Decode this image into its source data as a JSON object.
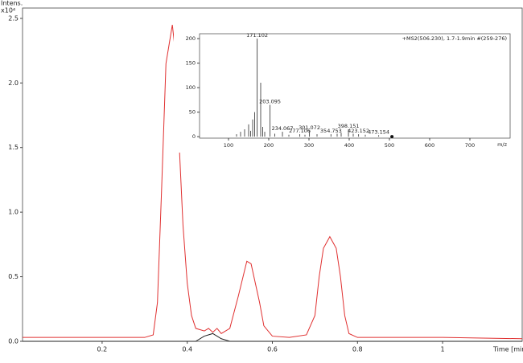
{
  "chart_data": [
    {
      "type": "line",
      "y_axis_label": "Intens.",
      "y_scale_label": "x10⁴",
      "x_axis_label": "Time [min]",
      "xlim": [
        0.013,
        1.187
      ],
      "ylim": [
        0,
        2.58
      ],
      "xticks": [
        0.2,
        0.4,
        0.6,
        0.8,
        1.0
      ],
      "yticks": [
        {
          "value": 0,
          "label": "0.0"
        },
        {
          "value": 0.5,
          "label": "0.5"
        },
        {
          "value": 1,
          "label": "1.0"
        },
        {
          "value": 1.5,
          "label": "1.5"
        },
        {
          "value": 2,
          "label": "2.0"
        },
        {
          "value": 2.5,
          "label": "2.5"
        }
      ],
      "series": [
        {
          "color": "#e03030",
          "x": [
            0.013,
            0.1,
            0.2,
            0.3,
            0.32,
            0.33,
            0.34,
            0.35,
            0.36,
            0.365,
            0.37,
            0.38,
            0.39,
            0.4,
            0.41,
            0.42,
            0.44,
            0.45,
            0.46,
            0.47,
            0.48,
            0.5,
            0.52,
            0.54,
            0.55,
            0.56,
            0.57,
            0.58,
            0.6,
            0.64,
            0.68,
            0.7,
            0.71,
            0.72,
            0.735,
            0.75,
            0.76,
            0.77,
            0.78,
            0.8,
            1.0,
            1.187
          ],
          "values": [
            0.03,
            0.03,
            0.03,
            0.03,
            0.05,
            0.3,
            1.2,
            2.15,
            2.35,
            2.45,
            2.3,
            1.6,
            0.9,
            0.45,
            0.2,
            0.1,
            0.08,
            0.1,
            0.07,
            0.1,
            0.06,
            0.1,
            0.35,
            0.62,
            0.6,
            0.45,
            0.3,
            0.12,
            0.04,
            0.03,
            0.05,
            0.2,
            0.5,
            0.72,
            0.81,
            0.72,
            0.5,
            0.2,
            0.06,
            0.03,
            0.03,
            0.02
          ]
        },
        {
          "color": "#222222",
          "x": [
            0.013,
            0.42,
            0.44,
            0.46,
            0.48,
            0.5,
            1.187
          ],
          "values": [
            0,
            0,
            0.04,
            0.06,
            0.02,
            0,
            0
          ]
        }
      ]
    },
    {
      "type": "bar",
      "annotation": "+MS2(506.230), 1.7-1.9min #(259-276)",
      "x_axis_label": "m/z",
      "xlim": [
        28,
        800
      ],
      "ylim": [
        -3,
        210
      ],
      "xticks": [
        100,
        200,
        300,
        400,
        500,
        600,
        700
      ],
      "yticks": [
        0,
        50,
        100,
        150,
        200
      ],
      "color": "#555555",
      "precursor_mz": 506.23,
      "x": [
        120,
        130,
        140,
        150,
        155,
        160,
        165,
        171.102,
        180,
        185,
        190,
        203.095,
        215,
        234.067,
        250,
        277.106,
        290,
        301.072,
        320,
        354.753,
        370,
        380,
        398.151,
        410,
        423.152,
        440,
        473.154
      ],
      "values": [
        5,
        10,
        15,
        25,
        12,
        35,
        50,
        200,
        110,
        20,
        10,
        65,
        6,
        10,
        4,
        5,
        4,
        12,
        5,
        5,
        6,
        8,
        15,
        6,
        5,
        4,
        3
      ],
      "x_labels": [
        null,
        null,
        null,
        null,
        null,
        null,
        null,
        "171.102",
        null,
        null,
        null,
        "203.095",
        null,
        "234.067",
        null,
        "277.106",
        null,
        "301.072",
        null,
        "354.753",
        null,
        null,
        "398.151",
        null,
        "423.152",
        null,
        "473.154"
      ]
    }
  ]
}
